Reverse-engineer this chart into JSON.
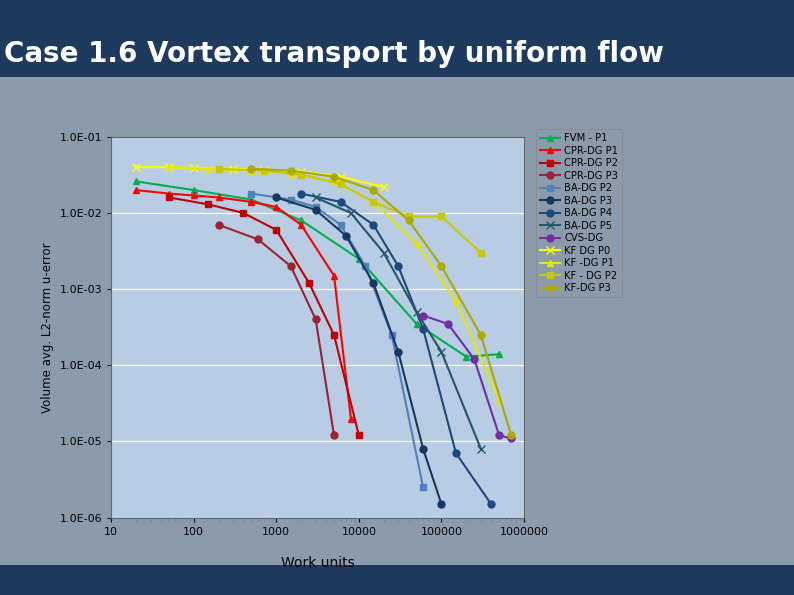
{
  "title": "Case 1.6 Vortex transport by uniform flow",
  "xlabel": "Work units",
  "ylabel": "Volume avg. L2-norm u-error",
  "title_color": "#FFFFFF",
  "title_fontsize": 20,
  "bg_outer": "#1e3a5f",
  "bg_inner_frame": "#8c9bab",
  "bg_chart": "#b8cce4",
  "xlim": [
    10,
    1000000
  ],
  "ylim": [
    1e-06,
    0.1
  ],
  "yticks": [
    1e-06,
    1e-05,
    0.0001,
    0.001,
    0.01,
    0.1
  ],
  "ytick_labels": [
    "1.0E-06",
    "1.0E-05",
    "1.0E-04",
    "1.0E-03",
    "1.0E-02",
    "1.0E-01"
  ],
  "xticks": [
    10,
    100,
    1000,
    10000,
    100000,
    1000000
  ],
  "xtick_labels": [
    "10",
    "100",
    "1000",
    "10000",
    "100000",
    "1000000"
  ],
  "series": [
    {
      "label": "FVM - P1",
      "color": "#00b050",
      "marker": "^",
      "markersize": 5,
      "x": [
        20,
        100,
        500,
        2000,
        10000,
        50000,
        200000,
        500000
      ],
      "y": [
        0.026,
        0.02,
        0.015,
        0.008,
        0.0025,
        0.00035,
        0.00013,
        0.00014
      ]
    },
    {
      "label": "CPR-DG P1",
      "color": "#ff0000",
      "marker": "^",
      "markersize": 5,
      "x": [
        20,
        50,
        100,
        200,
        500,
        1000,
        2000,
        5000,
        8000
      ],
      "y": [
        0.02,
        0.018,
        0.017,
        0.016,
        0.014,
        0.012,
        0.007,
        0.0015,
        2e-05
      ]
    },
    {
      "label": "CPR-DG P2",
      "color": "#c00000",
      "marker": "s",
      "markersize": 5,
      "x": [
        50,
        150,
        400,
        1000,
        2500,
        5000,
        10000
      ],
      "y": [
        0.016,
        0.013,
        0.01,
        0.006,
        0.0012,
        0.00025,
        1.2e-05
      ]
    },
    {
      "label": "CPR-DG P3",
      "color": "#9b2335",
      "marker": "o",
      "markersize": 5,
      "x": [
        200,
        600,
        1500,
        3000,
        5000
      ],
      "y": [
        0.007,
        0.0045,
        0.002,
        0.0004,
        1.2e-05
      ]
    },
    {
      "label": "BA-DG P2",
      "color": "#4f81bd",
      "marker": "s",
      "markersize": 5,
      "x": [
        500,
        1500,
        3000,
        6000,
        12000,
        25000,
        60000
      ],
      "y": [
        0.018,
        0.015,
        0.012,
        0.007,
        0.002,
        0.00025,
        2.5e-06
      ]
    },
    {
      "label": "BA-DG P3",
      "color": "#17375e",
      "marker": "o",
      "markersize": 5,
      "x": [
        1000,
        3000,
        7000,
        15000,
        30000,
        60000,
        100000
      ],
      "y": [
        0.016,
        0.011,
        0.005,
        0.0012,
        0.00015,
        8e-06,
        1.5e-06
      ]
    },
    {
      "label": "BA-DG P4",
      "color": "#1f497d",
      "marker": "o",
      "markersize": 5,
      "x": [
        2000,
        6000,
        15000,
        30000,
        60000,
        150000,
        400000
      ],
      "y": [
        0.018,
        0.014,
        0.007,
        0.002,
        0.0003,
        7e-06,
        1.5e-06
      ]
    },
    {
      "label": "BA-DG P5",
      "color": "#215868",
      "marker": "x",
      "markersize": 6,
      "x": [
        3000,
        8000,
        20000,
        50000,
        100000,
        300000
      ],
      "y": [
        0.016,
        0.01,
        0.003,
        0.0005,
        0.00015,
        8e-06
      ]
    },
    {
      "label": "CVS-DG",
      "color": "#7030a0",
      "marker": "o",
      "markersize": 5,
      "x": [
        60000,
        120000,
        250000,
        500000,
        700000
      ],
      "y": [
        0.00045,
        0.00035,
        0.00012,
        1.2e-05,
        1.1e-05
      ]
    },
    {
      "label": "KF DG P0",
      "color": "#ffff00",
      "marker": "x",
      "markersize": 6,
      "x": [
        20,
        50,
        100,
        300,
        700,
        2000,
        6000,
        20000
      ],
      "y": [
        0.04,
        0.04,
        0.039,
        0.038,
        0.037,
        0.035,
        0.03,
        0.022
      ]
    },
    {
      "label": "KF -DG P1",
      "color": "#e6e600",
      "marker": "^",
      "markersize": 5,
      "x": [
        50,
        150,
        500,
        1500,
        5000,
        15000,
        50000,
        150000,
        500000
      ],
      "y": [
        0.04,
        0.038,
        0.036,
        0.033,
        0.026,
        0.014,
        0.004,
        0.0007,
        3.5e-05
      ]
    },
    {
      "label": "KF - DG P2",
      "color": "#c8c800",
      "marker": "s",
      "markersize": 5,
      "x": [
        200,
        700,
        2000,
        6000,
        15000,
        40000,
        100000,
        300000
      ],
      "y": [
        0.038,
        0.036,
        0.032,
        0.024,
        0.014,
        0.009,
        0.009,
        0.003
      ]
    },
    {
      "label": "KF-DG P3",
      "color": "#aaaa00",
      "marker": "o",
      "markersize": 5,
      "x": [
        500,
        1500,
        5000,
        15000,
        40000,
        100000,
        300000,
        700000
      ],
      "y": [
        0.038,
        0.036,
        0.03,
        0.02,
        0.008,
        0.002,
        0.00025,
        1.2e-05
      ]
    }
  ]
}
